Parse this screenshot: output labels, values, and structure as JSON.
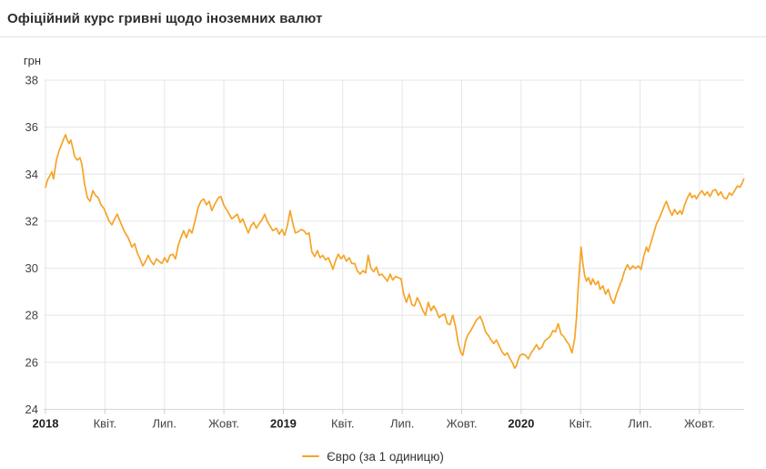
{
  "header": {
    "title": "Офіційний курс гривні щодо іноземних валют"
  },
  "chart_data": {
    "type": "line",
    "title": "Офіційний курс гривні щодо іноземних валют",
    "ylabel": "грн",
    "xlabel": "",
    "ylim": [
      24,
      38
    ],
    "y_ticks": [
      38,
      36,
      34,
      32,
      30,
      28,
      26,
      24
    ],
    "x_note": "x = months since 2018-01-01, daily official EUR/UAH rate",
    "xlim_months": [
      0,
      35.25
    ],
    "x_ticks": [
      {
        "m": 0,
        "label": "2018",
        "bold": true
      },
      {
        "m": 3,
        "label": "Квіт.",
        "bold": false
      },
      {
        "m": 6,
        "label": "Лип.",
        "bold": false
      },
      {
        "m": 9,
        "label": "Жовт.",
        "bold": false
      },
      {
        "m": 12,
        "label": "2019",
        "bold": true
      },
      {
        "m": 15,
        "label": "Квіт.",
        "bold": false
      },
      {
        "m": 18,
        "label": "Лип.",
        "bold": false
      },
      {
        "m": 21,
        "label": "Жовт.",
        "bold": false
      },
      {
        "m": 24,
        "label": "2020",
        "bold": true
      },
      {
        "m": 27,
        "label": "Квіт.",
        "bold": false
      },
      {
        "m": 30,
        "label": "Лип.",
        "bold": false
      },
      {
        "m": 33,
        "label": "Жовт.",
        "bold": false
      }
    ],
    "grid": true,
    "legend_position": "bottom",
    "series": [
      {
        "name": "Євро (за 1 одиницю)",
        "color": "#F5A427",
        "points": [
          [
            0.0,
            33.45
          ],
          [
            0.1,
            33.75
          ],
          [
            0.23,
            33.95
          ],
          [
            0.32,
            34.1
          ],
          [
            0.41,
            33.8
          ],
          [
            0.55,
            34.6
          ],
          [
            0.69,
            35.0
          ],
          [
            0.83,
            35.3
          ],
          [
            0.92,
            35.5
          ],
          [
            1.01,
            35.68
          ],
          [
            1.1,
            35.45
          ],
          [
            1.19,
            35.3
          ],
          [
            1.28,
            35.45
          ],
          [
            1.38,
            35.1
          ],
          [
            1.47,
            34.75
          ],
          [
            1.61,
            34.6
          ],
          [
            1.74,
            34.7
          ],
          [
            1.83,
            34.45
          ],
          [
            1.97,
            33.6
          ],
          [
            2.11,
            33.0
          ],
          [
            2.25,
            32.85
          ],
          [
            2.39,
            33.3
          ],
          [
            2.52,
            33.1
          ],
          [
            2.66,
            33.0
          ],
          [
            2.8,
            32.7
          ],
          [
            2.94,
            32.55
          ],
          [
            3.07,
            32.3
          ],
          [
            3.21,
            32.0
          ],
          [
            3.35,
            31.85
          ],
          [
            3.49,
            32.1
          ],
          [
            3.62,
            32.3
          ],
          [
            3.81,
            31.9
          ],
          [
            3.99,
            31.55
          ],
          [
            4.17,
            31.3
          ],
          [
            4.36,
            30.9
          ],
          [
            4.5,
            31.05
          ],
          [
            4.63,
            30.65
          ],
          [
            4.77,
            30.4
          ],
          [
            4.91,
            30.1
          ],
          [
            5.05,
            30.3
          ],
          [
            5.18,
            30.55
          ],
          [
            5.32,
            30.3
          ],
          [
            5.46,
            30.15
          ],
          [
            5.6,
            30.4
          ],
          [
            5.73,
            30.3
          ],
          [
            5.87,
            30.2
          ],
          [
            6.01,
            30.45
          ],
          [
            6.15,
            30.25
          ],
          [
            6.28,
            30.55
          ],
          [
            6.42,
            30.6
          ],
          [
            6.56,
            30.4
          ],
          [
            6.7,
            31.0
          ],
          [
            6.83,
            31.3
          ],
          [
            6.97,
            31.6
          ],
          [
            7.11,
            31.3
          ],
          [
            7.25,
            31.65
          ],
          [
            7.39,
            31.5
          ],
          [
            7.57,
            32.1
          ],
          [
            7.71,
            32.6
          ],
          [
            7.84,
            32.85
          ],
          [
            7.98,
            32.95
          ],
          [
            8.12,
            32.7
          ],
          [
            8.26,
            32.85
          ],
          [
            8.39,
            32.45
          ],
          [
            8.53,
            32.7
          ],
          [
            8.72,
            33.0
          ],
          [
            8.85,
            33.05
          ],
          [
            8.99,
            32.7
          ],
          [
            9.13,
            32.5
          ],
          [
            9.27,
            32.3
          ],
          [
            9.4,
            32.1
          ],
          [
            9.54,
            32.2
          ],
          [
            9.68,
            32.3
          ],
          [
            9.82,
            31.95
          ],
          [
            9.95,
            32.1
          ],
          [
            10.09,
            31.8
          ],
          [
            10.23,
            31.5
          ],
          [
            10.37,
            31.8
          ],
          [
            10.5,
            31.95
          ],
          [
            10.64,
            31.7
          ],
          [
            10.78,
            31.9
          ],
          [
            10.92,
            32.05
          ],
          [
            11.06,
            32.3
          ],
          [
            11.19,
            32.0
          ],
          [
            11.33,
            31.8
          ],
          [
            11.47,
            31.6
          ],
          [
            11.65,
            31.7
          ],
          [
            11.79,
            31.45
          ],
          [
            11.93,
            31.65
          ],
          [
            12.06,
            31.4
          ],
          [
            12.2,
            31.8
          ],
          [
            12.34,
            32.45
          ],
          [
            12.48,
            31.9
          ],
          [
            12.61,
            31.5
          ],
          [
            12.75,
            31.55
          ],
          [
            12.89,
            31.65
          ],
          [
            13.03,
            31.6
          ],
          [
            13.17,
            31.45
          ],
          [
            13.3,
            31.5
          ],
          [
            13.44,
            30.7
          ],
          [
            13.58,
            30.5
          ],
          [
            13.72,
            30.75
          ],
          [
            13.85,
            30.45
          ],
          [
            13.99,
            30.55
          ],
          [
            14.13,
            30.35
          ],
          [
            14.27,
            30.45
          ],
          [
            14.4,
            30.2
          ],
          [
            14.5,
            29.95
          ],
          [
            14.63,
            30.3
          ],
          [
            14.77,
            30.6
          ],
          [
            14.91,
            30.4
          ],
          [
            15.05,
            30.55
          ],
          [
            15.18,
            30.3
          ],
          [
            15.32,
            30.45
          ],
          [
            15.46,
            30.2
          ],
          [
            15.6,
            30.2
          ],
          [
            15.73,
            29.9
          ],
          [
            15.87,
            29.75
          ],
          [
            16.01,
            29.9
          ],
          [
            16.15,
            29.8
          ],
          [
            16.28,
            30.55
          ],
          [
            16.42,
            30.0
          ],
          [
            16.56,
            29.85
          ],
          [
            16.7,
            30.05
          ],
          [
            16.83,
            29.7
          ],
          [
            16.97,
            29.75
          ],
          [
            17.11,
            29.6
          ],
          [
            17.25,
            29.45
          ],
          [
            17.39,
            29.75
          ],
          [
            17.52,
            29.5
          ],
          [
            17.66,
            29.65
          ],
          [
            17.8,
            29.6
          ],
          [
            17.94,
            29.55
          ],
          [
            18.07,
            28.9
          ],
          [
            18.21,
            28.55
          ],
          [
            18.35,
            28.9
          ],
          [
            18.49,
            28.45
          ],
          [
            18.62,
            28.4
          ],
          [
            18.76,
            28.75
          ],
          [
            18.9,
            28.5
          ],
          [
            19.04,
            28.2
          ],
          [
            19.17,
            28.0
          ],
          [
            19.31,
            28.55
          ],
          [
            19.45,
            28.2
          ],
          [
            19.59,
            28.4
          ],
          [
            19.72,
            28.2
          ],
          [
            19.86,
            27.9
          ],
          [
            20.0,
            28.0
          ],
          [
            20.14,
            28.05
          ],
          [
            20.28,
            27.65
          ],
          [
            20.41,
            27.6
          ],
          [
            20.55,
            28.0
          ],
          [
            20.69,
            27.5
          ],
          [
            20.83,
            26.8
          ],
          [
            20.96,
            26.4
          ],
          [
            21.06,
            26.3
          ],
          [
            21.19,
            26.9
          ],
          [
            21.33,
            27.2
          ],
          [
            21.42,
            27.3
          ],
          [
            21.56,
            27.5
          ],
          [
            21.74,
            27.8
          ],
          [
            21.93,
            27.95
          ],
          [
            22.06,
            27.7
          ],
          [
            22.2,
            27.3
          ],
          [
            22.34,
            27.15
          ],
          [
            22.48,
            26.95
          ],
          [
            22.62,
            26.8
          ],
          [
            22.75,
            26.95
          ],
          [
            22.89,
            26.7
          ],
          [
            23.03,
            26.45
          ],
          [
            23.17,
            26.3
          ],
          [
            23.3,
            26.4
          ],
          [
            23.44,
            26.15
          ],
          [
            23.58,
            25.95
          ],
          [
            23.67,
            25.75
          ],
          [
            23.76,
            25.85
          ],
          [
            23.85,
            26.1
          ],
          [
            23.94,
            26.3
          ],
          [
            24.08,
            26.35
          ],
          [
            24.22,
            26.3
          ],
          [
            24.36,
            26.15
          ],
          [
            24.5,
            26.4
          ],
          [
            24.63,
            26.55
          ],
          [
            24.77,
            26.75
          ],
          [
            24.91,
            26.55
          ],
          [
            25.05,
            26.65
          ],
          [
            25.18,
            26.9
          ],
          [
            25.32,
            27.0
          ],
          [
            25.46,
            27.1
          ],
          [
            25.6,
            27.35
          ],
          [
            25.73,
            27.3
          ],
          [
            25.87,
            27.65
          ],
          [
            26.01,
            27.2
          ],
          [
            26.15,
            27.1
          ],
          [
            26.28,
            26.9
          ],
          [
            26.42,
            26.75
          ],
          [
            26.56,
            26.4
          ],
          [
            26.7,
            27.0
          ],
          [
            26.79,
            27.9
          ],
          [
            26.88,
            29.2
          ],
          [
            26.97,
            30.3
          ],
          [
            27.02,
            30.9
          ],
          [
            27.11,
            30.2
          ],
          [
            27.2,
            29.7
          ],
          [
            27.29,
            29.45
          ],
          [
            27.39,
            29.6
          ],
          [
            27.52,
            29.3
          ],
          [
            27.61,
            29.55
          ],
          [
            27.75,
            29.3
          ],
          [
            27.89,
            29.45
          ],
          [
            27.98,
            29.1
          ],
          [
            28.12,
            29.25
          ],
          [
            28.26,
            28.9
          ],
          [
            28.39,
            29.1
          ],
          [
            28.53,
            28.7
          ],
          [
            28.67,
            28.5
          ],
          [
            28.81,
            28.9
          ],
          [
            28.94,
            29.2
          ],
          [
            29.08,
            29.5
          ],
          [
            29.22,
            29.9
          ],
          [
            29.36,
            30.15
          ],
          [
            29.5,
            29.95
          ],
          [
            29.63,
            30.1
          ],
          [
            29.77,
            30.0
          ],
          [
            29.91,
            30.1
          ],
          [
            30.05,
            29.95
          ],
          [
            30.18,
            30.5
          ],
          [
            30.32,
            30.9
          ],
          [
            30.41,
            30.7
          ],
          [
            30.55,
            31.1
          ],
          [
            30.69,
            31.5
          ],
          [
            30.83,
            31.9
          ],
          [
            30.96,
            32.1
          ],
          [
            31.1,
            32.4
          ],
          [
            31.24,
            32.7
          ],
          [
            31.33,
            32.85
          ],
          [
            31.47,
            32.5
          ],
          [
            31.61,
            32.25
          ],
          [
            31.74,
            32.5
          ],
          [
            31.88,
            32.3
          ],
          [
            32.02,
            32.45
          ],
          [
            32.11,
            32.3
          ],
          [
            32.25,
            32.7
          ],
          [
            32.39,
            33.0
          ],
          [
            32.52,
            33.2
          ],
          [
            32.61,
            33.0
          ],
          [
            32.75,
            33.1
          ],
          [
            32.84,
            32.95
          ],
          [
            32.98,
            33.15
          ],
          [
            33.12,
            33.3
          ],
          [
            33.26,
            33.1
          ],
          [
            33.39,
            33.25
          ],
          [
            33.53,
            33.05
          ],
          [
            33.67,
            33.3
          ],
          [
            33.81,
            33.35
          ],
          [
            33.94,
            33.1
          ],
          [
            34.08,
            33.25
          ],
          [
            34.22,
            33.0
          ],
          [
            34.36,
            32.95
          ],
          [
            34.5,
            33.2
          ],
          [
            34.63,
            33.1
          ],
          [
            34.77,
            33.3
          ],
          [
            34.91,
            33.5
          ],
          [
            35.05,
            33.45
          ],
          [
            35.14,
            33.6
          ],
          [
            35.23,
            33.8
          ]
        ]
      }
    ]
  },
  "legend": {
    "items": [
      {
        "label": "Євро (за 1 одиницю)",
        "color": "#F5A427"
      }
    ]
  }
}
